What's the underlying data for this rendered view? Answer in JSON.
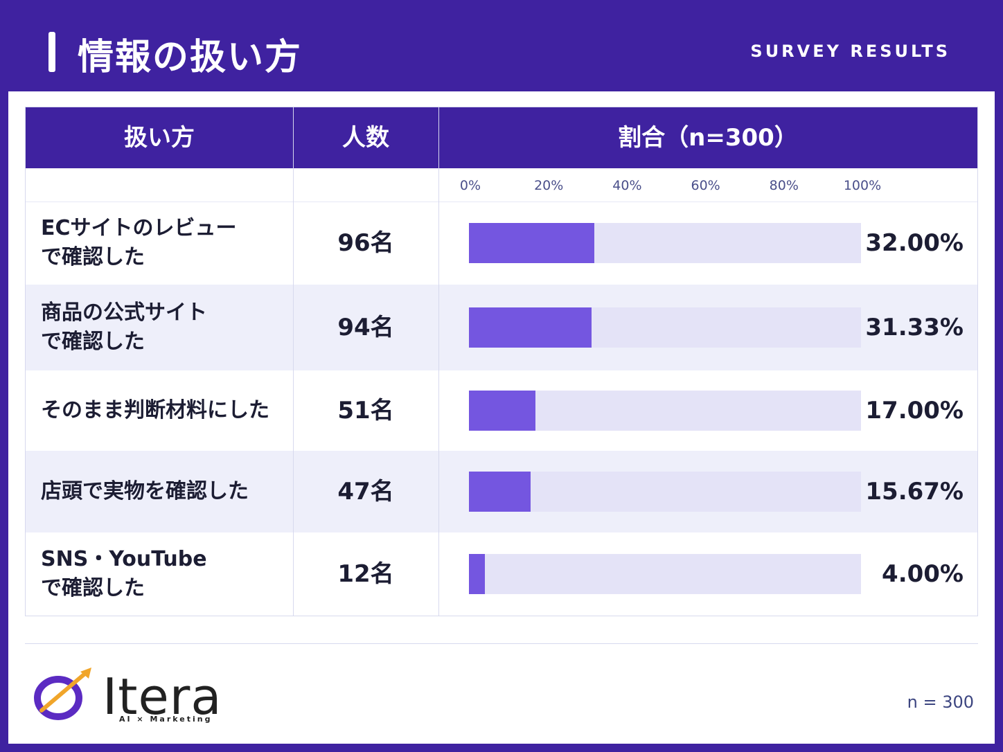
{
  "header": {
    "title": "情報の扱い方",
    "subtitle": "SURVEY RESULTS"
  },
  "table": {
    "col_method": "扱い方",
    "col_count": "人数",
    "col_ratio": "割合（n=300）"
  },
  "colors": {
    "brand": "#3f22a0",
    "bar": "#7456e0",
    "track": "#e4e3f7",
    "row_alt": "#eeeffa"
  },
  "chart_data": {
    "type": "bar",
    "orientation": "horizontal",
    "xlim": [
      0,
      100
    ],
    "ticks": [
      "0%",
      "20%",
      "40%",
      "60%",
      "80%",
      "100%"
    ],
    "tick_values": [
      0,
      20,
      40,
      60,
      80,
      100
    ],
    "categories": [
      [
        "ECサイトのレビュー",
        "で確認した"
      ],
      [
        "商品の公式サイト",
        "で確認した"
      ],
      [
        "そのまま判断材料にした"
      ],
      [
        "店頭で実物を確認した"
      ],
      [
        "SNS・YouTube",
        "で確認した"
      ]
    ],
    "counts": [
      "96名",
      "94名",
      "51名",
      "47名",
      "12名"
    ],
    "values": [
      32.0,
      31.33,
      17.0,
      15.67,
      4.0
    ],
    "value_labels": [
      "32.00%",
      "31.33%",
      "17.00%",
      "15.67%",
      "4.00%"
    ]
  },
  "logo": {
    "name": "Itera",
    "tagline": "AI × Marketing",
    "mark_icon": "itera-logo-icon"
  },
  "footnote": "n = 300"
}
